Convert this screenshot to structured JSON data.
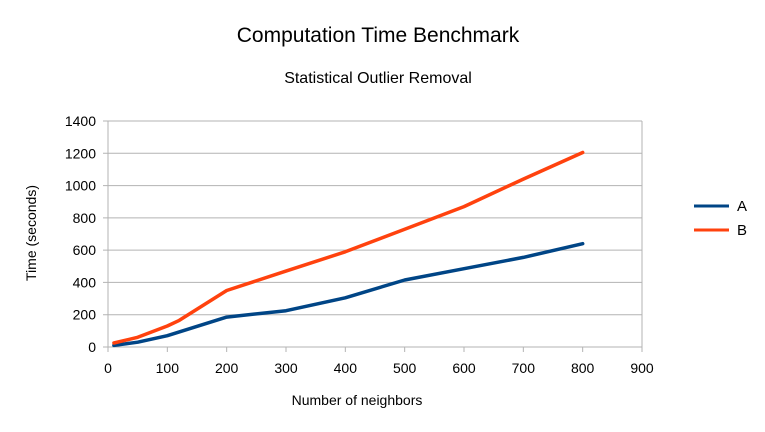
{
  "chart_data": {
    "type": "line",
    "title": "Computation Time Benchmark",
    "subtitle": "Statistical Outlier Removal",
    "xlabel": "Number of neighbors",
    "ylabel": "Time (seconds)",
    "xlim": [
      0,
      900
    ],
    "ylim": [
      0,
      1400
    ],
    "xticks": [
      0,
      100,
      200,
      300,
      400,
      500,
      600,
      700,
      800,
      900
    ],
    "yticks": [
      0,
      200,
      400,
      600,
      800,
      1000,
      1200,
      1400
    ],
    "grid": "horizontal",
    "legend_position": "right",
    "series": [
      {
        "name": "A",
        "color": "#004586",
        "x": [
          10,
          50,
          100,
          200,
          300,
          400,
          500,
          600,
          700,
          800
        ],
        "y": [
          10,
          30,
          70,
          185,
          225,
          305,
          415,
          485,
          555,
          640
        ]
      },
      {
        "name": "B",
        "color": "#ff420e",
        "x": [
          10,
          50,
          100,
          120,
          200,
          300,
          400,
          500,
          600,
          700,
          800
        ],
        "y": [
          25,
          60,
          130,
          165,
          350,
          470,
          590,
          730,
          870,
          1040,
          1205
        ]
      }
    ]
  }
}
